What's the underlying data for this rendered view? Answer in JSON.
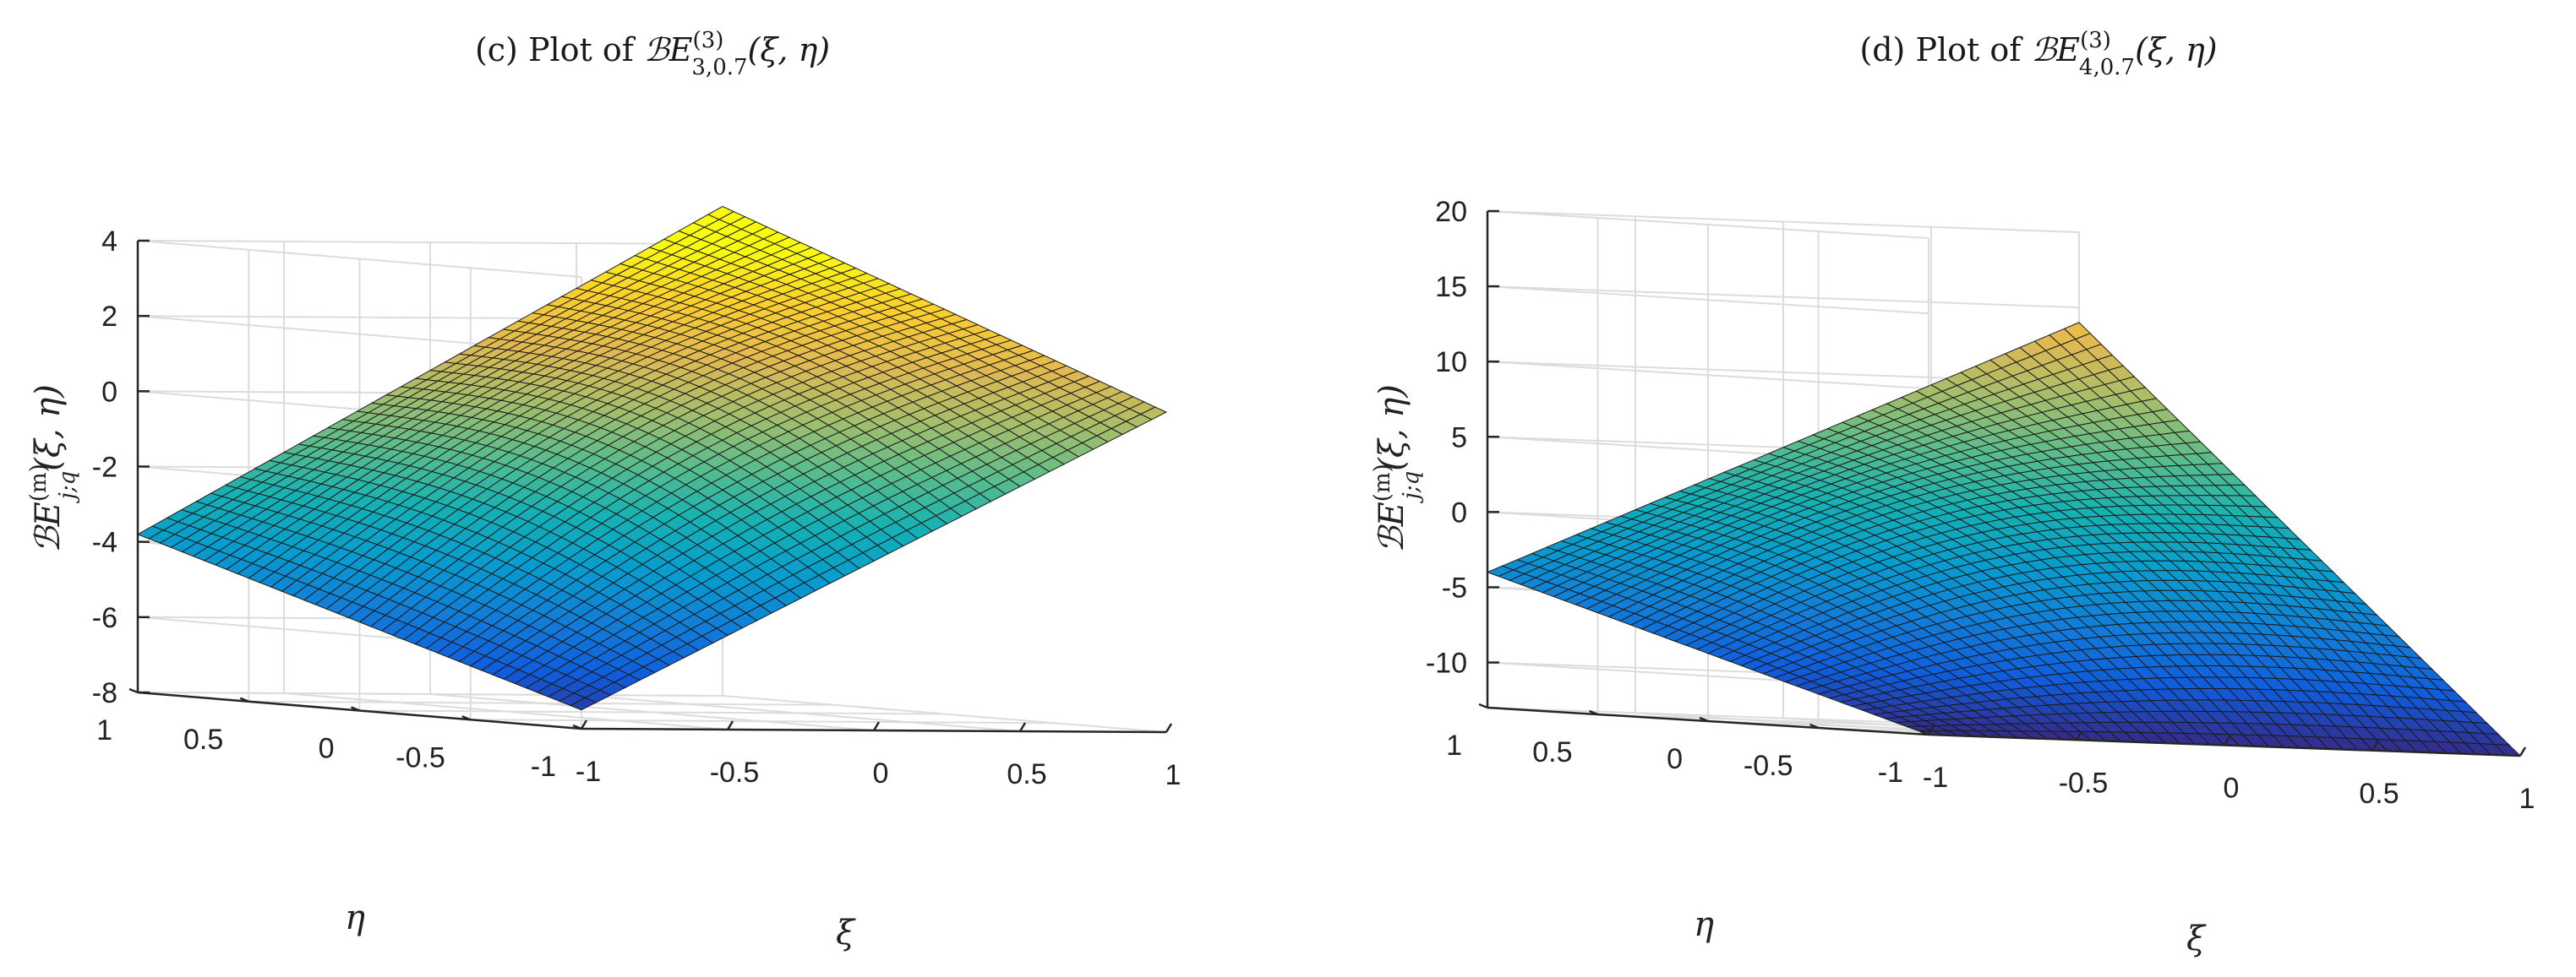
{
  "chart_data": [
    {
      "type": "surface",
      "title_prefix": "(c) Plot of ",
      "title_math": "ℬE",
      "title_sub": "3,0.7",
      "title_sup": "(3)",
      "title_args": "(ξ, η)",
      "xlabel": "ξ",
      "ylabel": "η",
      "zlabel_math": "ℬE",
      "zlabel_sub": "j;q",
      "zlabel_sup": "(m)",
      "zlabel_args": "(ξ, η)",
      "xlim": [
        -1,
        1
      ],
      "ylim": [
        -1,
        1
      ],
      "zlim": [
        -8,
        4
      ],
      "xticks": [
        "-1",
        "-0.5",
        "0",
        "0.5",
        "1"
      ],
      "yticks": [
        "-1",
        "-0.5",
        "0",
        "0.5",
        "1"
      ],
      "zticks": [
        "-8",
        "-6",
        "-4",
        "-2",
        "0",
        "2",
        "4"
      ],
      "corner_values": [
        {
          "xi": -1,
          "eta": 1,
          "z": -3.8
        },
        {
          "xi": -1,
          "eta": -1,
          "z": -7.5
        },
        {
          "xi": 1,
          "eta": -1,
          "z": 0.5
        },
        {
          "xi": 1,
          "eta": 1,
          "z": 5.0
        }
      ],
      "grid": true,
      "colormap": "parula"
    },
    {
      "type": "surface",
      "title_prefix": "(d) Plot of ",
      "title_math": "ℬE",
      "title_sub": "4,0.7",
      "title_sup": "(3)",
      "title_args": "(ξ, η)",
      "xlabel": "ξ",
      "ylabel": "η",
      "zlabel_math": "ℬE",
      "zlabel_sub": "j;q",
      "zlabel_sup": "(m)",
      "zlabel_args": "(ξ, η)",
      "xlim": [
        -1,
        1
      ],
      "ylim": [
        -1,
        1
      ],
      "zlim": [
        -13,
        20
      ],
      "xticks": [
        "-1",
        "-0.5",
        "0",
        "0.5",
        "1"
      ],
      "yticks": [
        "-1",
        "-0.5",
        "0",
        "0.5",
        "1"
      ],
      "zticks": [
        "-10",
        "-5",
        "0",
        "5",
        "10",
        "15",
        "20"
      ],
      "corner_values": [
        {
          "xi": -1,
          "eta": 1,
          "z": -4
        },
        {
          "xi": -1,
          "eta": -1,
          "z": -13
        },
        {
          "xi": 1,
          "eta": -1,
          "z": -13
        },
        {
          "xi": 1,
          "eta": 1,
          "z": 14
        }
      ],
      "grid": true,
      "colormap": "parula"
    }
  ]
}
